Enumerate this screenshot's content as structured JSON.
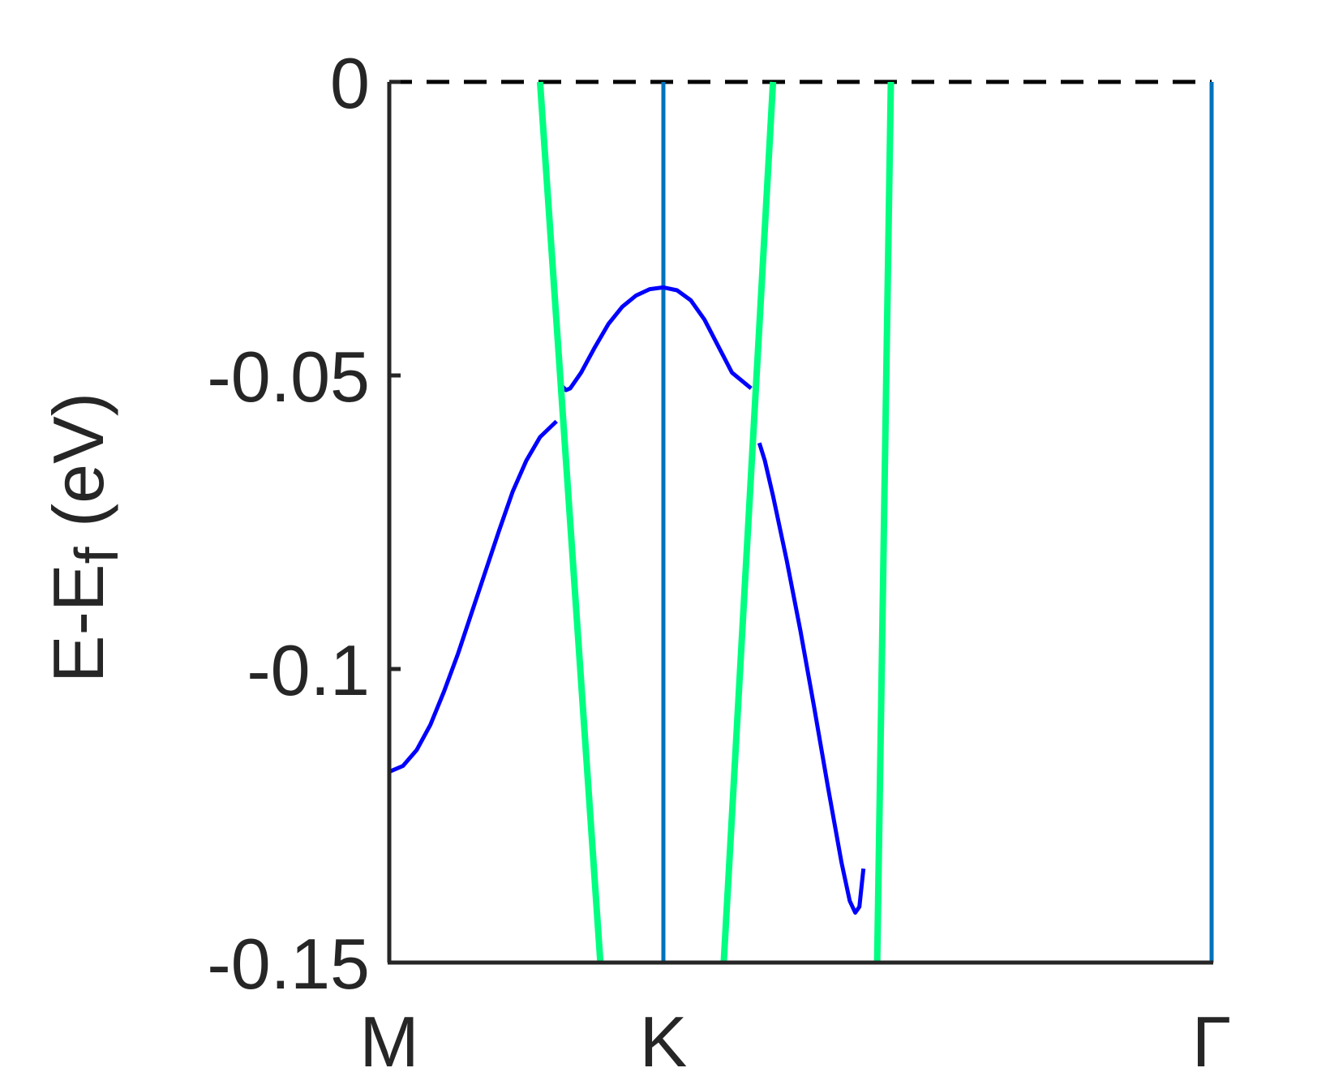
{
  "chart_data": {
    "type": "line",
    "title": "",
    "xlabel": "",
    "ylabel": {
      "main": "E-E",
      "subscript": "f",
      "suffix": " (eV)"
    },
    "ylim": [
      -0.15,
      0
    ],
    "xlim": [
      0,
      3
    ],
    "x_ticks": [
      {
        "value": 0,
        "label": "M"
      },
      {
        "value": 1,
        "label": "K"
      },
      {
        "value": 3,
        "label": "Γ"
      }
    ],
    "y_ticks": [
      {
        "value": 0,
        "label": "0"
      },
      {
        "value": -0.05,
        "label": "-0.05"
      },
      {
        "value": -0.1,
        "label": "-0.1"
      },
      {
        "value": -0.15,
        "label": "-0.15"
      }
    ],
    "grid": false,
    "legend": "none",
    "reference_lines": [
      {
        "kind": "horizontal",
        "y": 0,
        "style": "dashed",
        "color": "#000000"
      },
      {
        "kind": "vertical",
        "x": 1,
        "style": "solid",
        "color": "#0072BD"
      },
      {
        "kind": "vertical",
        "x": 3,
        "style": "solid",
        "color": "#0072BD"
      }
    ],
    "series": [
      {
        "color": "#0000FF",
        "points": [
          [
            0.0,
            -0.1175
          ],
          [
            0.05,
            -0.1165
          ],
          [
            0.1,
            -0.1138
          ],
          [
            0.15,
            -0.1095
          ],
          [
            0.2,
            -0.1038
          ],
          [
            0.25,
            -0.0975
          ],
          [
            0.3,
            -0.0905
          ],
          [
            0.35,
            -0.0835
          ],
          [
            0.4,
            -0.0765
          ],
          [
            0.45,
            -0.0698
          ],
          [
            0.5,
            -0.0645
          ],
          [
            0.55,
            -0.0605
          ],
          [
            0.61,
            -0.0578
          ]
        ]
      },
      {
        "color": "#0000FF",
        "points": [
          [
            0.62,
            -0.0505
          ],
          [
            0.63,
            -0.0518
          ],
          [
            0.645,
            -0.0525
          ],
          [
            0.66,
            -0.0522
          ],
          [
            0.7,
            -0.0495
          ],
          [
            0.75,
            -0.0452
          ],
          [
            0.8,
            -0.0412
          ],
          [
            0.85,
            -0.0383
          ],
          [
            0.9,
            -0.0364
          ],
          [
            0.95,
            -0.0353
          ],
          [
            1.0,
            -0.035
          ],
          [
            1.05,
            -0.0355
          ],
          [
            1.1,
            -0.0372
          ],
          [
            1.15,
            -0.0405
          ],
          [
            1.2,
            -0.045
          ],
          [
            1.25,
            -0.0495
          ],
          [
            1.32,
            -0.0522
          ]
        ]
      },
      {
        "color": "#0000FF",
        "points": [
          [
            1.35,
            -0.0615
          ],
          [
            1.37,
            -0.0645
          ],
          [
            1.4,
            -0.0705
          ],
          [
            1.45,
            -0.0815
          ],
          [
            1.5,
            -0.0935
          ],
          [
            1.55,
            -0.1065
          ],
          [
            1.6,
            -0.12
          ],
          [
            1.65,
            -0.133
          ],
          [
            1.68,
            -0.1395
          ],
          [
            1.7,
            -0.1415
          ],
          [
            1.715,
            -0.1405
          ],
          [
            1.73,
            -0.134
          ]
        ]
      },
      {
        "color": "#00FF80",
        "points": [
          [
            0.55,
            0.0
          ],
          [
            0.77,
            -0.15
          ]
        ]
      },
      {
        "color": "#00FF80",
        "points": [
          [
            1.22,
            -0.15
          ],
          [
            1.4,
            0.0
          ]
        ]
      },
      {
        "color": "#00FF80",
        "points": [
          [
            1.78,
            -0.15
          ],
          [
            1.83,
            0.0
          ]
        ]
      }
    ]
  }
}
